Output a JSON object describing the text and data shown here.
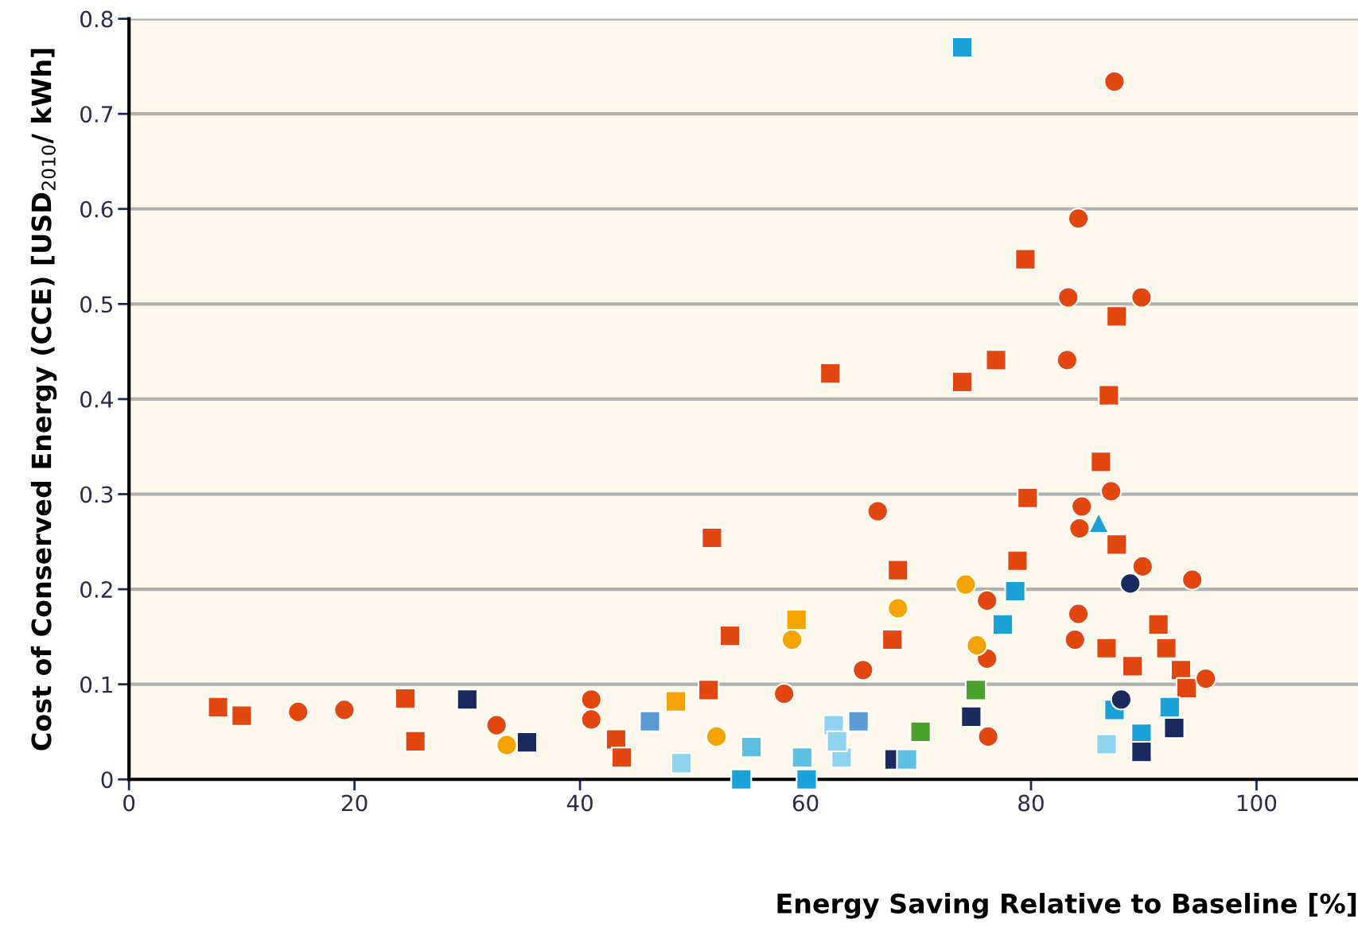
{
  "chart_data": {
    "type": "scatter",
    "xlabel": "Energy Saving Relative to Baseline [%]",
    "ylabel": "Cost of Conserved Energy (CCE) [USD$_{2010}$/ kWh]",
    "xlim": [
      0,
      109
    ],
    "xticks": [
      0,
      20,
      40,
      60,
      80,
      100
    ],
    "ylim": [
      0,
      0.8
    ],
    "yticks": [
      0,
      0.1,
      0.2,
      0.3,
      0.4,
      0.5,
      0.6,
      0.7,
      0.8
    ],
    "grid": "y",
    "series": [
      {
        "color": "#e2470f",
        "marker": "square",
        "x": [
          7.9,
          10.0,
          24.5,
          25.4,
          43.2,
          43.7,
          51.4,
          51.7,
          53.3,
          62.2,
          67.7,
          68.2,
          73.9,
          76.9,
          78.8,
          79.5,
          79.7,
          87.6,
          86.9,
          86.2,
          87.6,
          86.7,
          89.0,
          91.3,
          92.0,
          93.3,
          93.8
        ],
        "values": [
          0.076,
          0.067,
          0.085,
          0.04,
          0.042,
          0.023,
          0.094,
          0.254,
          0.151,
          0.427,
          0.147,
          0.22,
          0.418,
          0.441,
          0.23,
          0.547,
          0.296,
          0.487,
          0.404,
          0.334,
          0.247,
          0.138,
          0.119,
          0.163,
          0.138,
          0.115,
          0.096
        ]
      },
      {
        "color": "#e2470f",
        "marker": "circle",
        "x": [
          15.0,
          19.1,
          32.6,
          41.0,
          41.0,
          58.1,
          65.1,
          66.4,
          76.1,
          76.1,
          76.2,
          87.4,
          84.2,
          83.3,
          89.8,
          83.2,
          84.5,
          84.3,
          87.1,
          84.2,
          83.9,
          89.9,
          94.3,
          95.5
        ],
        "values": [
          0.071,
          0.073,
          0.057,
          0.084,
          0.063,
          0.09,
          0.115,
          0.282,
          0.127,
          0.188,
          0.045,
          0.734,
          0.59,
          0.507,
          0.507,
          0.441,
          0.287,
          0.264,
          0.303,
          0.174,
          0.147,
          0.224,
          0.21,
          0.106
        ]
      },
      {
        "color": "#f5a300",
        "marker": "circle",
        "x": [
          74.2,
          68.2,
          58.8,
          75.2,
          52.1,
          33.5
        ],
        "values": [
          0.205,
          0.18,
          0.147,
          0.141,
          0.045,
          0.036
        ]
      },
      {
        "color": "#f5a300",
        "marker": "square",
        "x": [
          59.2,
          48.5
        ],
        "values": [
          0.168,
          0.082
        ]
      },
      {
        "color": "#1aa2d8",
        "marker": "square",
        "x": [
          73.9,
          78.6,
          77.5,
          54.3,
          60.1,
          92.3,
          87.4,
          89.8
        ],
        "values": [
          0.77,
          0.198,
          0.163,
          0.0,
          0.0,
          0.076,
          0.073,
          0.048
        ]
      },
      {
        "color": "#1aa2d8",
        "marker": "triangle",
        "x": [
          86.0
        ],
        "values": [
          0.27
        ]
      },
      {
        "color": "#1b2a5c",
        "marker": "square",
        "x": [
          30.0,
          35.3,
          74.7,
          92.7,
          89.8,
          67.9
        ],
        "values": [
          0.084,
          0.039,
          0.066,
          0.054,
          0.029,
          0.021
        ]
      },
      {
        "color": "#1b2a5c",
        "marker": "circle",
        "x": [
          88.8,
          88.0
        ],
        "values": [
          0.206,
          0.084
        ]
      },
      {
        "color": "#4ca02c",
        "marker": "square",
        "x": [
          75.1,
          70.2
        ],
        "values": [
          0.094,
          0.05
        ]
      },
      {
        "color": "#8fd3ee",
        "marker": "square",
        "x": [
          49.0,
          62.5,
          63.2,
          86.7,
          62.8
        ],
        "values": [
          0.017,
          0.057,
          0.023,
          0.037,
          0.04
        ]
      },
      {
        "color": "#5ec0e0",
        "marker": "square",
        "x": [
          55.2,
          59.7,
          69.0
        ],
        "values": [
          0.034,
          0.023,
          0.021
        ]
      },
      {
        "color": "#5b9bd5",
        "marker": "square",
        "x": [
          46.2,
          64.7
        ],
        "values": [
          0.061,
          0.061
        ]
      }
    ]
  }
}
